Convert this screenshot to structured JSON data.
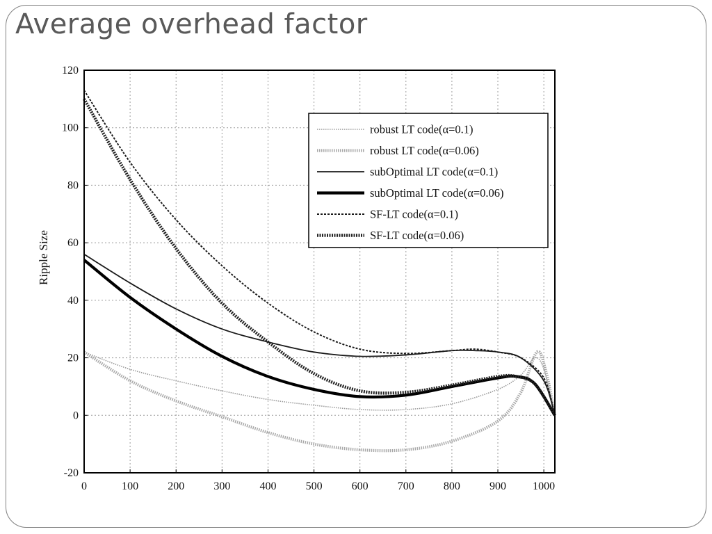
{
  "slide": {
    "title": "Average overhead factor"
  },
  "chart_data": {
    "type": "line",
    "title": "",
    "xlabel": "",
    "ylabel": "Ripple Size",
    "xlim": [
      0,
      1024
    ],
    "ylim": [
      -20,
      120
    ],
    "xticks": [
      "0",
      "100",
      "200",
      "300",
      "400",
      "500",
      "600",
      "700",
      "800",
      "900",
      "1000"
    ],
    "yticks": [
      "-20",
      "0",
      "20",
      "40",
      "60",
      "80",
      "100",
      "120"
    ],
    "grid": true,
    "legend_position": "top-right",
    "series": [
      {
        "name": "robust LT code(α=0.1)",
        "style": "thin-dotted",
        "color": "#9a9a9a",
        "x": [
          0,
          100,
          200,
          300,
          400,
          500,
          600,
          700,
          800,
          900,
          950,
          980,
          1000,
          1024
        ],
        "y": [
          22,
          16,
          12,
          8.5,
          5.5,
          3.5,
          2,
          2,
          4,
          9,
          14,
          20,
          16,
          0
        ]
      },
      {
        "name": "robust LT code(α=0.06)",
        "style": "thick-dotted",
        "color": "#a8a8a8",
        "x": [
          0,
          100,
          200,
          300,
          400,
          500,
          600,
          700,
          800,
          900,
          950,
          985,
          1005,
          1024
        ],
        "y": [
          22,
          12,
          5,
          -0.5,
          -6,
          -10,
          -12,
          -12,
          -9,
          -2,
          8,
          22,
          15,
          0
        ]
      },
      {
        "name": "subOptimal LT code(α=0.1)",
        "style": "thin-solid",
        "color": "#1a1a1a",
        "x": [
          0,
          100,
          200,
          300,
          400,
          500,
          600,
          700,
          800,
          850,
          900,
          950,
          1000,
          1024
        ],
        "y": [
          56,
          46,
          37,
          30,
          25.5,
          22,
          20.5,
          21,
          22.5,
          22.5,
          22,
          20,
          12,
          0
        ]
      },
      {
        "name": "subOptimal LT code(α=0.06)",
        "style": "thick-solid",
        "color": "#000000",
        "x": [
          0,
          100,
          200,
          300,
          400,
          500,
          600,
          700,
          800,
          900,
          940,
          980,
          1024
        ],
        "y": [
          54,
          41,
          30,
          20.5,
          13.5,
          9,
          6.5,
          7,
          10,
          13,
          13.5,
          11,
          0
        ]
      },
      {
        "name": "SF-LT code(α=0.1)",
        "style": "thin-dashed",
        "color": "#1a1a1a",
        "x": [
          0,
          100,
          200,
          300,
          400,
          500,
          600,
          700,
          800,
          850,
          900,
          950,
          1000,
          1024
        ],
        "y": [
          113,
          88,
          68,
          52,
          39,
          29,
          23,
          21.5,
          22.5,
          23,
          22,
          20,
          13,
          0
        ]
      },
      {
        "name": "SF-LT code(α=0.06)",
        "style": "thick-dashed",
        "color": "#222222",
        "x": [
          0,
          100,
          200,
          300,
          400,
          500,
          600,
          700,
          800,
          900,
          940,
          980,
          1024
        ],
        "y": [
          110,
          82,
          58,
          39,
          25.5,
          14.5,
          8.5,
          8,
          10.5,
          13.5,
          13.5,
          11,
          0
        ]
      }
    ]
  }
}
